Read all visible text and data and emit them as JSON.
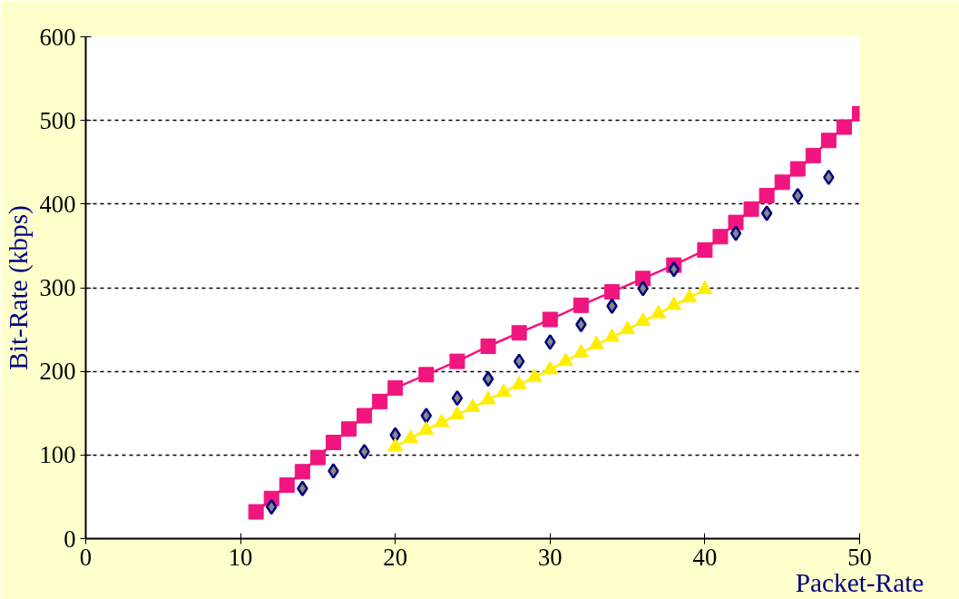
{
  "chart_data": {
    "type": "line",
    "xlabel": "Packet-Rate",
    "ylabel": "Bit-Rate (kbps)",
    "xlim": [
      0,
      50
    ],
    "xticks": [
      0,
      10,
      20,
      30,
      40,
      50
    ],
    "ylim": [
      0,
      600
    ],
    "yticks": [
      0,
      100,
      200,
      300,
      400,
      500,
      600
    ],
    "grid": "y",
    "series": [
      {
        "marker": "square",
        "color": "#f0157f",
        "x": [
          11,
          12,
          13,
          14,
          15,
          16,
          17,
          18,
          19,
          20,
          22,
          24,
          26,
          28,
          30,
          32,
          34,
          36,
          38,
          40,
          41,
          42,
          43,
          44,
          45,
          46,
          47,
          48,
          49,
          50
        ],
        "values": [
          32,
          48,
          64,
          80,
          97,
          115,
          131,
          147,
          164,
          180,
          196,
          212,
          230,
          246,
          262,
          279,
          295,
          311,
          327,
          345,
          361,
          378,
          394,
          410,
          426,
          442,
          458,
          476,
          492,
          508
        ]
      },
      {
        "type": "scatter",
        "marker": "diamond",
        "color": "#000080",
        "x": [
          12,
          14,
          16,
          18,
          20,
          22,
          24,
          26,
          28,
          30,
          32,
          34,
          36,
          38,
          42,
          44,
          46,
          48
        ],
        "values": [
          38,
          60,
          81,
          104,
          124,
          147,
          168,
          191,
          212,
          235,
          256,
          278,
          299,
          322,
          365,
          389,
          410,
          432
        ]
      },
      {
        "type": "line",
        "marker": "triangle",
        "color": "#ffee00",
        "x": [
          20,
          21,
          22,
          23,
          24,
          25,
          26,
          27,
          28,
          29,
          30,
          31,
          32,
          33,
          34,
          35,
          36,
          37,
          38,
          39,
          40
        ],
        "values": [
          110,
          120,
          130,
          139,
          148,
          157,
          166,
          175,
          184,
          193,
          202,
          212,
          222,
          232,
          241,
          250,
          260,
          269,
          279,
          288,
          298
        ]
      }
    ]
  }
}
